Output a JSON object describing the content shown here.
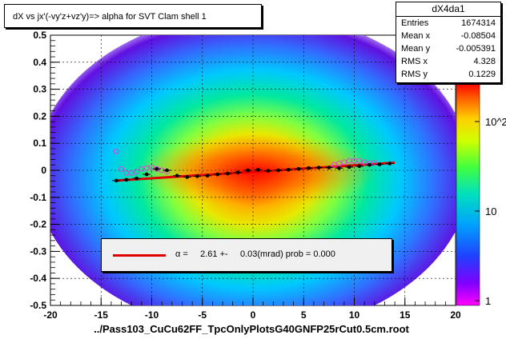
{
  "title": "dX vs    jx'(-vy'z+vz'y)=> alpha for SVT Clam shell 1",
  "xlabel": "../Pass103_CuCu62FF_TpcOnlyPlotsG40GNFP25rCut0.5cm.root",
  "stats": {
    "name": "dX4da1",
    "rows": [
      {
        "key": "Entries",
        "value": "1674314"
      },
      {
        "key": "Mean x",
        "value": "-0.08504"
      },
      {
        "key": "Mean y",
        "value": "-0.005391"
      },
      {
        "key": "RMS x",
        "value": "4.328"
      },
      {
        "key": "RMS y",
        "value": "0.1229"
      }
    ]
  },
  "legend_text": "α =     2.61 +-     0.03(mrad) prob = 0.000",
  "colors": {
    "fit": "#e00000",
    "profile": "#000000",
    "open_markers": "#e040e0"
  },
  "chart_data": {
    "type": "heatmap",
    "xlim": [
      -20,
      20
    ],
    "ylim": [
      -0.5,
      0.5
    ],
    "x_ticks": [
      "-20",
      "-15",
      "-10",
      "-5",
      "0",
      "5",
      "10",
      "15",
      "20"
    ],
    "y_ticks": [
      "-0.5",
      "-0.4",
      "-0.3",
      "-0.2",
      "-0.1",
      "0",
      "0.1",
      "0.2",
      "0.3",
      "0.4",
      "0.5"
    ],
    "z_scale": "log",
    "z_ticks": [
      "1",
      "10",
      "10^2"
    ],
    "grid": true,
    "fit_line": {
      "x": [
        -13.5,
        14
      ],
      "y": [
        -0.038,
        0.028
      ]
    },
    "profile": {
      "x": [
        -13.5,
        -12.5,
        -11.5,
        -10.5,
        -9.5,
        -8.5,
        -7.5,
        -6.5,
        -5.5,
        -4.5,
        -3.5,
        -2.5,
        -1.5,
        -0.5,
        0.5,
        1.5,
        2.5,
        3.5,
        4.5,
        5.5,
        6.5,
        7.5,
        8.5,
        9.5,
        10.5,
        11.5,
        12.5,
        13.5
      ],
      "y": [
        -0.038,
        -0.035,
        -0.03,
        -0.015,
        0.005,
        0.0,
        -0.02,
        -0.025,
        -0.022,
        -0.02,
        -0.015,
        -0.012,
        -0.008,
        0.0,
        0.002,
        -0.002,
        0.0,
        0.002,
        0.005,
        0.008,
        0.01,
        0.01,
        0.008,
        0.012,
        0.015,
        0.02,
        0.022,
        0.025
      ]
    },
    "open_points": {
      "x": [
        -13.5,
        -13.0,
        -12.5,
        -12.0,
        -11.5,
        -11.0,
        -10.5,
        -10.0,
        -9.5,
        -9.0,
        -8.5,
        8.0,
        8.5,
        9.0,
        9.5,
        10.0,
        10.5,
        11.0,
        11.5,
        12.0
      ],
      "y": [
        0.07,
        0.005,
        -0.01,
        -0.01,
        -0.005,
        0.005,
        0.008,
        0.01,
        0.005,
        0.0,
        -0.005,
        0.02,
        0.025,
        0.03,
        0.035,
        0.035,
        0.035,
        0.03,
        0.025,
        0.028
      ]
    }
  }
}
